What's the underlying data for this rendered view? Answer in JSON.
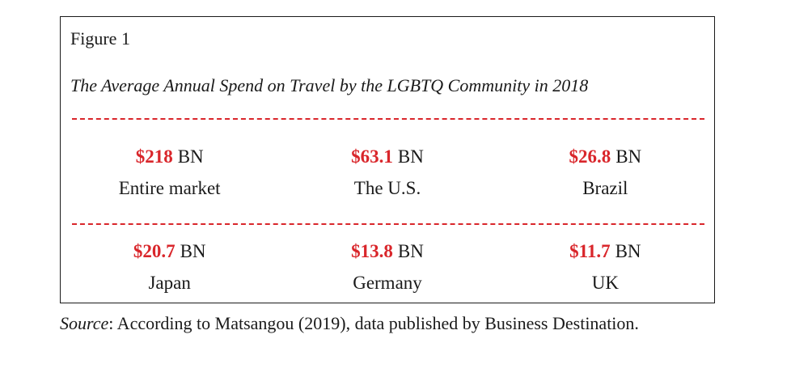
{
  "figure": {
    "label": "Figure 1",
    "title": "The Average Annual Spend on Travel by the LGBTQ Community in 2018",
    "accent_color": "#d9262b",
    "stats": [
      {
        "value": "$218",
        "unit": "BN",
        "name": "Entire market"
      },
      {
        "value": "$63.1",
        "unit": "BN",
        "name": "The U.S."
      },
      {
        "value": "$26.8",
        "unit": "BN",
        "name": "Brazil"
      },
      {
        "value": "$20.7",
        "unit": "BN",
        "name": "Japan"
      },
      {
        "value": "$13.8",
        "unit": "BN",
        "name": "Germany"
      },
      {
        "value": "$11.7",
        "unit": "BN",
        "name": "UK"
      }
    ]
  },
  "source": {
    "label": "Source",
    "text": ": According to Matsangou (2019), data published by Business Desti­nation."
  }
}
